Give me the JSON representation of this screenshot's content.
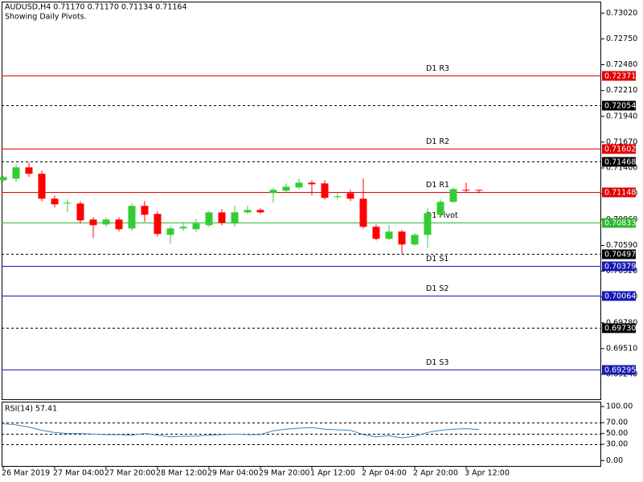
{
  "chart_data": [
    {
      "type": "candlestick",
      "title": "AUDUSD,H4  0.71170 0.71170 0.71134 0.71164",
      "subtitle": "Showing Daily Pivots.",
      "categories": [
        "26 Mar 2019",
        null,
        null,
        null,
        "27 Mar 04:00",
        null,
        null,
        null,
        "27 Mar 20:00",
        null,
        null,
        null,
        "28 Mar 12:00",
        null,
        null,
        null,
        "29 Mar 04:00",
        null,
        null,
        null,
        "29 Mar 20:00",
        null,
        null,
        null,
        "1 Apr 12:00",
        null,
        null,
        null,
        "2 Apr 04:00",
        null,
        null,
        null,
        "2 Apr 20:00",
        null,
        null,
        null,
        "3 Apr 12:00",
        null
      ],
      "open": [
        0.71271,
        0.71288,
        0.71406,
        0.71339,
        0.71078,
        0.71028,
        0.71028,
        0.7086,
        0.70809,
        0.7086,
        0.70767,
        0.71003,
        0.70919,
        0.707,
        0.70767,
        0.70759,
        0.70801,
        0.70935,
        0.70818,
        0.70935,
        0.70961,
        0.71137,
        0.71162,
        0.71196,
        0.71246,
        0.71238,
        0.71095,
        0.71137,
        0.71078,
        0.70784,
        0.70658,
        0.70734,
        0.70599,
        0.707,
        0.7091,
        0.71045,
        0.71171,
        0.7117
      ],
      "high": [
        0.71322,
        0.71439,
        0.71456,
        0.71372,
        0.71112,
        0.7107,
        0.71053,
        0.70885,
        0.70877,
        0.70885,
        0.71028,
        0.71053,
        0.70944,
        0.70792,
        0.70835,
        0.70868,
        0.70952,
        0.70969,
        0.71003,
        0.71003,
        0.70978,
        0.71196,
        0.71238,
        0.71288,
        0.71271,
        0.71271,
        0.71137,
        0.71171,
        0.71288,
        0.70809,
        0.70801,
        0.70751,
        0.70717,
        0.70978,
        0.7107,
        0.71196,
        0.71246,
        0.7117
      ],
      "low": [
        0.71255,
        0.71255,
        0.71305,
        0.71053,
        0.70985,
        0.70935,
        0.70818,
        0.70667,
        0.70784,
        0.70734,
        0.70742,
        0.70835,
        0.70683,
        0.70608,
        0.70742,
        0.70734,
        0.70784,
        0.70801,
        0.70784,
        0.70919,
        0.70919,
        0.71036,
        0.71137,
        0.71179,
        0.71112,
        0.7107,
        0.7107,
        0.71053,
        0.70767,
        0.70641,
        0.70641,
        0.70498,
        0.70582,
        0.70566,
        0.70902,
        0.71036,
        0.71137,
        0.71134
      ],
      "close": [
        0.71305,
        0.71406,
        0.71339,
        0.71078,
        0.71019,
        0.71036,
        0.70851,
        0.70801,
        0.7086,
        0.70759,
        0.71003,
        0.7091,
        0.70709,
        0.70767,
        0.70784,
        0.70818,
        0.70935,
        0.70826,
        0.70935,
        0.70961,
        0.70935,
        0.71171,
        0.71204,
        0.71246,
        0.71229,
        0.71087,
        0.71104,
        0.71078,
        0.70784,
        0.70658,
        0.70734,
        0.70599,
        0.707,
        0.70927,
        0.71045,
        0.71179,
        0.71162,
        0.71164
      ],
      "up_color": "#32cd32",
      "down_color": "#ff0000",
      "ylim": [
        0.6898,
        0.7314
      ],
      "yticks": [
        {
          "value": 0.7302,
          "label": "0.73020"
        },
        {
          "value": 0.7275,
          "label": "0.72750"
        },
        {
          "value": 0.7248,
          "label": "0.72480"
        },
        {
          "value": 0.7221,
          "label": "0.72210"
        },
        {
          "value": 0.7194,
          "label": "0.71940"
        },
        {
          "value": 0.7167,
          "label": "0.71670"
        },
        {
          "value": 0.714,
          "label": "0.71400"
        },
        {
          "value": 0.7113,
          "label": "0.71130"
        },
        {
          "value": 0.7086,
          "label": "0.70860"
        },
        {
          "value": 0.7059,
          "label": "0.70590"
        },
        {
          "value": 0.7032,
          "label": "0.70320"
        },
        {
          "value": 0.7005,
          "label": "0.70050"
        },
        {
          "value": 0.6978,
          "label": "0.69780"
        },
        {
          "value": 0.6951,
          "label": "0.69510"
        },
        {
          "value": 0.6924,
          "label": "0.69240"
        }
      ],
      "levels": [
        {
          "name": "D1 R3",
          "value": 0.72371,
          "color": "#e00000"
        },
        {
          "value": 0.72054,
          "color": "#000000"
        },
        {
          "name": "D1 R2",
          "value": 0.71602,
          "color": "#e00000"
        },
        {
          "value": 0.71468,
          "color": "#000000"
        },
        {
          "name": "D1 R1",
          "value": 0.71148,
          "color": "#e00000"
        },
        {
          "name": "D1 Pivot",
          "value": 0.70833,
          "color": "#32b432"
        },
        {
          "value": 0.70497,
          "color": "#000000"
        },
        {
          "name": "D1 S1",
          "value": 0.70379,
          "color": "#1818b4"
        },
        {
          "name": "D1 S2",
          "value": 0.70064,
          "color": "#1818b4"
        },
        {
          "value": 0.6973,
          "value_label": "0.69730",
          "color": "#000000"
        },
        {
          "name": "D1 S3",
          "value": 0.69295,
          "color": "#1818b4"
        }
      ]
    },
    {
      "type": "line",
      "title": "RSI(14) 57.41",
      "values": [
        68,
        66,
        62,
        56,
        52,
        50,
        50,
        49,
        48,
        48,
        47,
        50,
        47,
        44,
        45,
        45,
        47,
        48,
        49,
        48,
        48,
        55,
        58,
        60,
        61,
        58,
        57,
        56,
        48,
        44,
        46,
        42,
        45,
        52,
        56,
        58,
        59,
        57.41
      ],
      "color": "#4682b4",
      "ylim": [
        -10,
        109
      ],
      "yticks": [
        {
          "value": 100,
          "label": "100.00"
        },
        {
          "value": 70,
          "label": "70.00"
        },
        {
          "value": 50,
          "label": "50.00"
        },
        {
          "value": 30,
          "label": "30.00"
        },
        {
          "value": 0,
          "label": "0.00"
        }
      ],
      "levels": [
        70,
        50,
        30
      ]
    }
  ]
}
